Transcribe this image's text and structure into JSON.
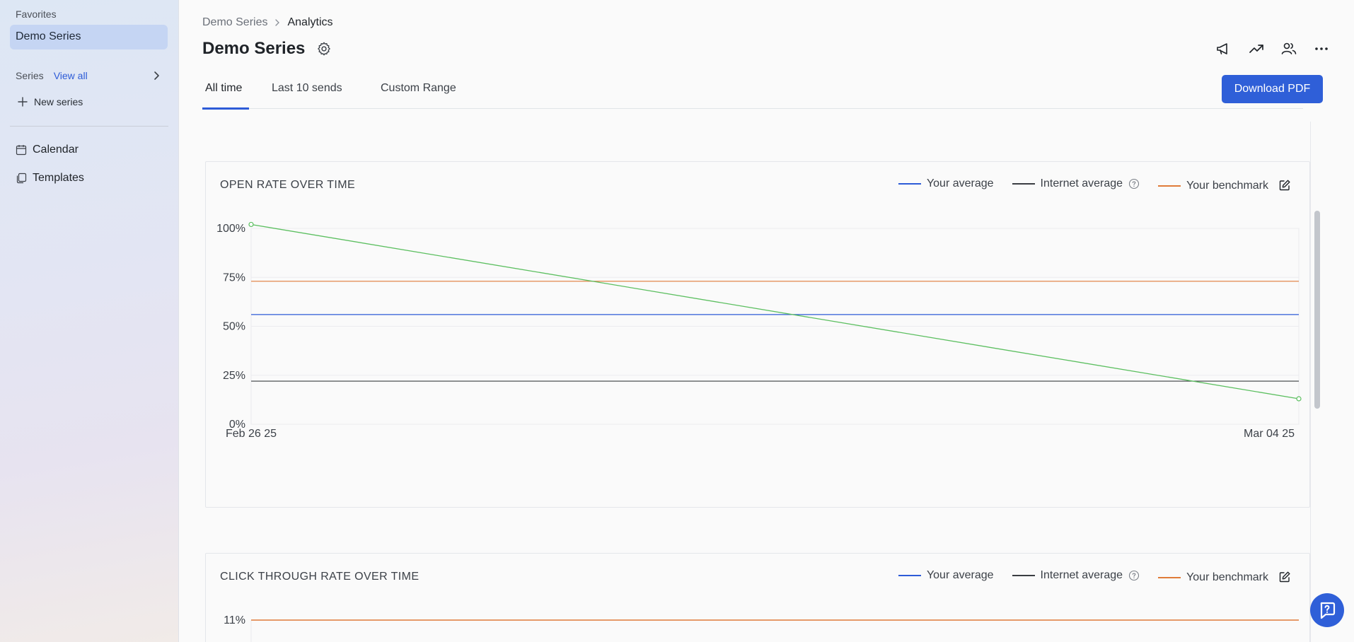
{
  "sidebar": {
    "favorites_label": "Favorites",
    "favorite_item": "Demo Series",
    "series_label": "Series",
    "view_all": "View all",
    "new_series": "New series",
    "nav": [
      {
        "label": "Calendar",
        "icon": "calendar-icon"
      },
      {
        "label": "Templates",
        "icon": "templates-icon"
      }
    ]
  },
  "header": {
    "breadcrumb_parent": "Demo Series",
    "breadcrumb_current": "Analytics",
    "title": "Demo Series",
    "toolbar_icons": [
      "megaphone-icon",
      "trending-up-icon",
      "users-icon",
      "more-icon"
    ]
  },
  "tabs": [
    {
      "label": "All time",
      "active": true
    },
    {
      "label": "Last 10 sends",
      "active": false
    },
    {
      "label": "Custom Range",
      "active": false
    }
  ],
  "download_label": "Download PDF",
  "legend": {
    "your_average": "Your average",
    "internet_average": "Internet average",
    "your_benchmark": "Your benchmark"
  },
  "colors": {
    "accent": "#2f5fd8",
    "your_average": "#2d5bd7",
    "internet_average": "#3a3d42",
    "your_benchmark": "#e07b39",
    "series": "#5cbf60"
  },
  "chart_data": [
    {
      "type": "line",
      "title": "OPEN RATE OVER TIME",
      "x": [
        "Feb 26 25",
        "Mar 04 25"
      ],
      "y_ticks": [
        "0%",
        "25%",
        "50%",
        "75%",
        "100%"
      ],
      "ylim": [
        0,
        100
      ],
      "grid": true,
      "legend_position": "top-right",
      "series": [
        {
          "values": [
            102,
            13
          ],
          "color": "#5cbf60"
        }
      ],
      "reference_lines": [
        {
          "name": "Your average",
          "value": 56,
          "color": "#2d5bd7"
        },
        {
          "name": "Internet average",
          "value": 22,
          "color": "#3a3d42"
        },
        {
          "name": "Your benchmark",
          "value": 73,
          "color": "#e07b39"
        }
      ]
    },
    {
      "type": "line",
      "title": "CLICK THROUGH RATE OVER TIME",
      "y_ticks": [
        "11%"
      ],
      "reference_lines": [
        {
          "name": "Your benchmark",
          "value": 11,
          "color": "#e07b39"
        }
      ]
    }
  ]
}
